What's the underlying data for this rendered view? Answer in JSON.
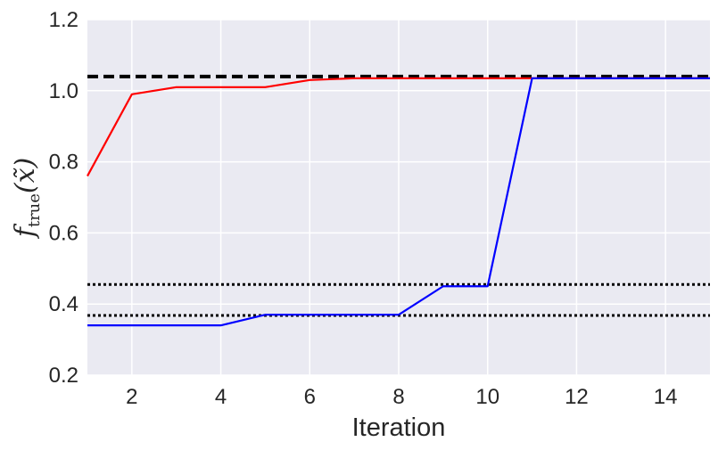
{
  "chart_data": {
    "type": "line",
    "title": "",
    "xlabel": "Iteration",
    "ylabel": {
      "main": "f",
      "sub": "true",
      "arg": "(x̃)"
    },
    "xlim": [
      1,
      15
    ],
    "ylim": [
      0.2,
      1.2
    ],
    "xticks": [
      2,
      4,
      6,
      8,
      10,
      12,
      14
    ],
    "xtick_labels": [
      "2",
      "4",
      "6",
      "8",
      "10",
      "12",
      "14"
    ],
    "yticks": [
      0.2,
      0.4,
      0.6,
      0.8,
      1.0,
      1.2
    ],
    "ytick_labels": [
      "0.2",
      "0.4",
      "0.6",
      "0.8",
      "1.0",
      "1.2"
    ],
    "grid": true,
    "legend": "none",
    "x": [
      1,
      2,
      3,
      4,
      5,
      6,
      7,
      8,
      9,
      10,
      11,
      12,
      13,
      14,
      15
    ],
    "series": [
      {
        "color": "#ff0000",
        "values": [
          0.76,
          0.99,
          1.01,
          1.01,
          1.01,
          1.03,
          1.035,
          1.035,
          1.035,
          1.035,
          1.035,
          1.035,
          1.035,
          1.035,
          1.035
        ]
      },
      {
        "color": "#0000ff",
        "values": [
          0.34,
          0.34,
          0.34,
          0.34,
          0.37,
          0.37,
          0.37,
          0.37,
          0.45,
          0.45,
          1.035,
          1.035,
          1.035,
          1.035,
          1.035
        ]
      }
    ],
    "reference_lines": [
      {
        "y": 1.04,
        "style": "dashed",
        "color": "#000000"
      },
      {
        "y": 0.455,
        "style": "dotted",
        "color": "#000000"
      },
      {
        "y": 0.368,
        "style": "dotted",
        "color": "#000000"
      }
    ],
    "colors": {
      "plot_background": "#eaeaf2",
      "grid": "#ffffff",
      "text": "#262626"
    }
  }
}
